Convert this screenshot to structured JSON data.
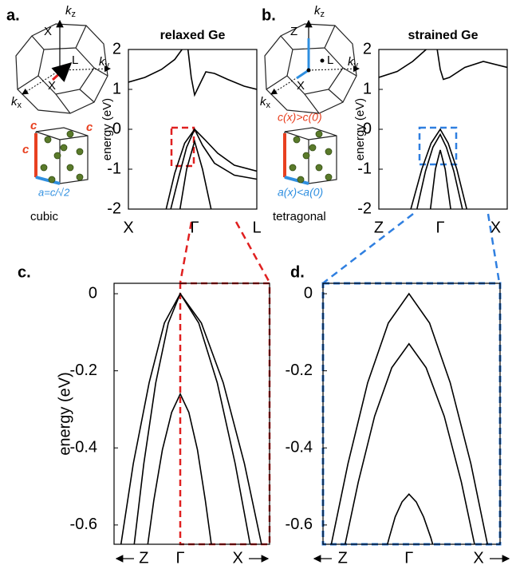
{
  "panel_labels": [
    "a.",
    "b.",
    "c.",
    "d."
  ],
  "diagrams": {
    "a": {
      "top_axis": "X",
      "kz": {
        "base": "k",
        "sub": "z"
      },
      "ky": {
        "base": "k",
        "sub": "y"
      },
      "kx": {
        "base": "k",
        "sub": "x"
      },
      "point": "L",
      "bottom_axis": "X",
      "edge_c": "c",
      "edge_a": "a=c/√2",
      "caption": "cubic"
    },
    "b": {
      "top_axis": "Z",
      "kz": {
        "base": "k",
        "sub": "z"
      },
      "ky": {
        "base": "k",
        "sub": "y"
      },
      "kx": {
        "base": "k",
        "sub": "x"
      },
      "point": "L",
      "bottom_axis": "X",
      "edge_c": "c(x)>c(0)",
      "edge_a": "a(x)<a(0)",
      "caption": "tetragonal"
    }
  },
  "chart_data": [
    {
      "type": "line",
      "title": "relaxed Ge",
      "ylabel": "energy (eV)",
      "color": "#000000",
      "xlim": [
        -1,
        0.94
      ],
      "xticks": [
        {
          "value": -1,
          "label": "X"
        },
        {
          "value": 0,
          "label": "Γ"
        },
        {
          "value": 0.94,
          "label": "L"
        }
      ],
      "ylim": [
        -2,
        2
      ],
      "yticks": [
        2,
        1,
        0,
        -1,
        -2
      ],
      "series": [
        {
          "x": [
            -1,
            -0.75,
            -0.5,
            -0.3,
            -0.19
          ],
          "values": [
            1.18,
            1.3,
            1.5,
            1.75,
            2
          ]
        },
        {
          "x": [
            -0.1,
            -0.05,
            0,
            0.07,
            0.17,
            0.3,
            0.5,
            0.75,
            0.94
          ],
          "values": [
            2,
            1.3,
            0.86,
            1.1,
            1.44,
            1.4,
            1.25,
            1.08,
            1.0
          ]
        },
        {
          "x": [
            -0.43,
            -0.3,
            -0.15,
            0,
            0.15,
            0.35,
            0.6,
            0.94
          ],
          "values": [
            -2,
            -1.1,
            -0.35,
            0,
            -0.25,
            -0.6,
            -0.9,
            -1.05
          ]
        },
        {
          "x": [
            -0.36,
            -0.24,
            -0.12,
            0,
            0.12,
            0.3,
            0.6,
            0.94
          ],
          "values": [
            -2,
            -1.2,
            -0.45,
            0,
            -0.4,
            -0.85,
            -1.15,
            -1.25
          ]
        },
        {
          "x": [
            -0.22,
            -0.12,
            0,
            0.12,
            0.25
          ],
          "values": [
            -2,
            -1.0,
            -0.3,
            -1.0,
            -2
          ]
        }
      ]
    },
    {
      "type": "line",
      "title": "strained Ge",
      "ylabel": "energy (eV)",
      "color": "#000000",
      "xlim": [
        -1,
        1.09
      ],
      "xticks": [
        {
          "value": -1,
          "label": "Z"
        },
        {
          "value": 0,
          "label": "Γ"
        },
        {
          "value": 0.9,
          "label": "X"
        }
      ],
      "ylim": [
        -2,
        2
      ],
      "yticks": [
        2,
        1,
        0,
        -1,
        -2
      ],
      "series": [
        {
          "x": [
            -1,
            -0.7,
            -0.45,
            -0.23
          ],
          "values": [
            1.3,
            1.45,
            1.7,
            2
          ]
        },
        {
          "x": [
            -0.05,
            0,
            0.05,
            0.15,
            0.4,
            0.7,
            1.09
          ],
          "values": [
            2,
            1.5,
            1.25,
            1.3,
            1.55,
            1.7,
            1.55
          ]
        },
        {
          "x": [
            -0.48,
            -0.3,
            -0.15,
            0,
            0.13,
            0.27,
            0.43
          ],
          "values": [
            -2,
            -1.0,
            -0.35,
            0,
            -0.35,
            -1.0,
            -2
          ]
        },
        {
          "x": [
            -0.38,
            -0.24,
            -0.12,
            0,
            0.1,
            0.22,
            0.36
          ],
          "values": [
            -2,
            -1.05,
            -0.45,
            -0.13,
            -0.45,
            -1.05,
            -2
          ]
        },
        {
          "x": [
            -0.16,
            -0.08,
            0,
            0.08,
            0.17
          ],
          "values": [
            -2,
            -1.0,
            -0.52,
            -1.0,
            -2
          ]
        }
      ]
    },
    {
      "type": "line",
      "ylabel": "energy (eV)",
      "color": "#000000",
      "xlim": [
        -1,
        1.35
      ],
      "xticks": [
        {
          "value": -0.55,
          "label": "Z"
        },
        {
          "value": 0,
          "label": "Γ"
        },
        {
          "value": 0.87,
          "label": "X"
        }
      ],
      "ylim": [
        -0.65,
        0.027
      ],
      "yticks": [
        0,
        -0.2,
        -0.4,
        -0.6
      ],
      "series": [
        {
          "x": [
            -0.94,
            -0.71,
            -0.47,
            -0.24,
            0,
            0.32,
            0.65,
            0.97,
            1.29
          ],
          "values": [
            -0.7,
            -0.441,
            -0.231,
            -0.076,
            0,
            -0.076,
            -0.231,
            -0.441,
            -0.7
          ]
        },
        {
          "x": [
            -0.73,
            -0.55,
            -0.37,
            -0.18,
            0,
            0.28,
            0.56,
            0.83,
            1.11
          ],
          "values": [
            -0.7,
            -0.441,
            -0.231,
            -0.076,
            0,
            -0.076,
            -0.231,
            -0.441,
            -0.7
          ]
        },
        {
          "x": [
            -0.53,
            -0.4,
            -0.27,
            -0.13,
            0,
            0.13,
            0.26,
            0.38,
            0.51
          ],
          "values": [
            -0.7,
            -0.537,
            -0.405,
            -0.308,
            -0.26,
            -0.308,
            -0.405,
            -0.537,
            -0.7
          ]
        }
      ]
    },
    {
      "type": "line",
      "color": "#000000",
      "xlim": [
        -1,
        1.06
      ],
      "xticks": [
        {
          "value": -0.77,
          "label": "Z"
        },
        {
          "value": 0,
          "label": "Γ"
        },
        {
          "value": 0.81,
          "label": "X"
        }
      ],
      "ylim": [
        -0.65,
        0.027
      ],
      "yticks": [
        0,
        -0.2,
        -0.4,
        -0.6
      ],
      "series": [
        {
          "x": [
            -0.95,
            -0.71,
            -0.48,
            -0.24,
            0,
            0.24,
            0.48,
            0.72,
            0.96
          ],
          "values": [
            -0.7,
            -0.441,
            -0.231,
            -0.076,
            0,
            -0.076,
            -0.231,
            -0.441,
            -0.7
          ]
        },
        {
          "x": [
            -0.79,
            -0.59,
            -0.4,
            -0.2,
            0,
            0.2,
            0.41,
            0.61,
            0.81
          ],
          "values": [
            -0.7,
            -0.489,
            -0.318,
            -0.192,
            -0.13,
            -0.192,
            -0.318,
            -0.489,
            -0.7
          ]
        },
        {
          "x": [
            -0.31,
            -0.23,
            -0.16,
            -0.08,
            0,
            0.085,
            0.17,
            0.255,
            0.34
          ],
          "values": [
            -0.7,
            -0.633,
            -0.579,
            -0.54,
            -0.52,
            -0.54,
            -0.579,
            -0.633,
            -0.7
          ]
        }
      ]
    }
  ]
}
